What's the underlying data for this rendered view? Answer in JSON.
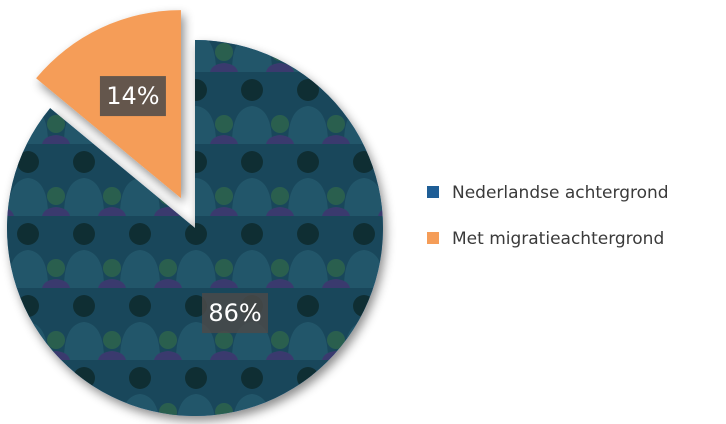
{
  "chart_data": {
    "type": "pie",
    "series": [
      {
        "name": "Nederlandse achtergrond",
        "color": "#1f5e96",
        "values": [
          86
        ],
        "value_labels": [
          "86%"
        ]
      },
      {
        "name": "Met migratieachtergrond",
        "color": "#f59d58",
        "values": [
          14
        ],
        "value_labels": [
          "14%"
        ]
      }
    ],
    "exploded": "Met migratieachtergrond"
  }
}
